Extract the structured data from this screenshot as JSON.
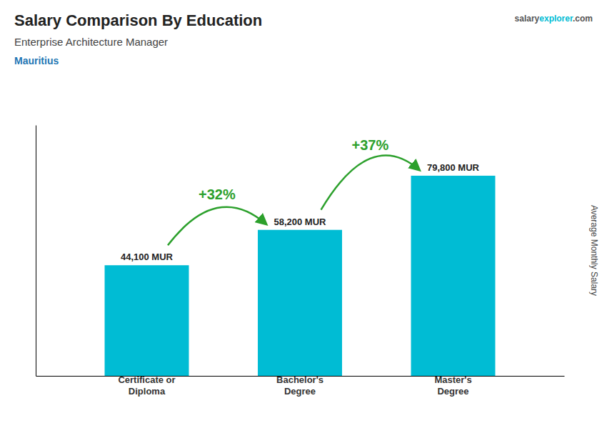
{
  "chart_data": {
    "type": "bar",
    "title": "Salary Comparison By Education",
    "subtitle": "Enterprise Architecture Manager",
    "country": "Mauritius",
    "ylabel": "Average Monthly Salary",
    "categories": [
      "Certificate or\nDiploma",
      "Bachelor's\nDegree",
      "Master's\nDegree"
    ],
    "values": [
      44100,
      58200,
      79800
    ],
    "value_labels": [
      "44,100 MUR",
      "58,200 MUR",
      "79,800 MUR"
    ],
    "data_labels": true,
    "color": "#00bcd4",
    "ylim": [
      0,
      100000
    ],
    "tick_labels": "x",
    "grid": false,
    "annotations": [
      "+32%",
      "+37%"
    ],
    "watermark": [
      "salary",
      "explorer",
      ".com"
    ]
  }
}
